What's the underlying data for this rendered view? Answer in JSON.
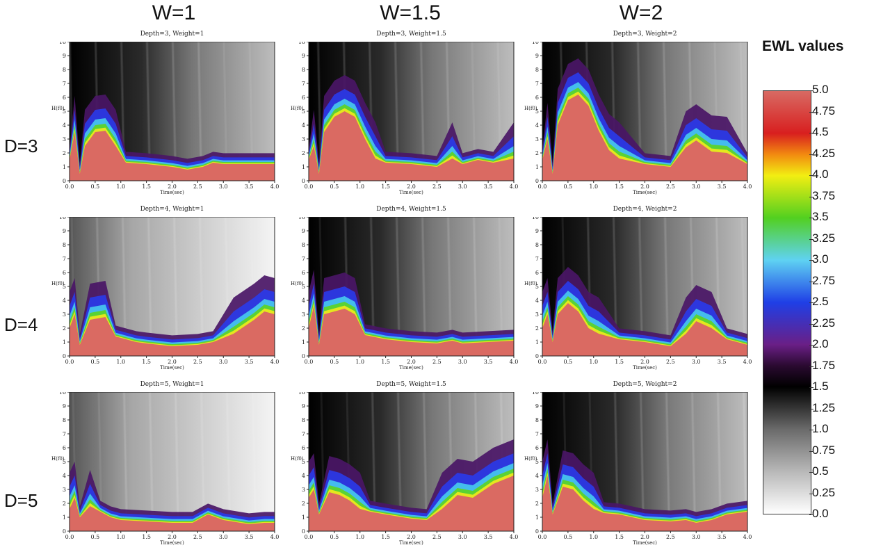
{
  "column_headers": [
    "W=1",
    "W=1.5",
    "W=2"
  ],
  "row_labels": [
    "D=3",
    "D=4",
    "D=5"
  ],
  "colorbar": {
    "title": "EWL values",
    "ticks": [
      "5.0",
      "4.75",
      "4.5",
      "4.25",
      "4.0",
      "3.75",
      "3.5",
      "3.25",
      "3.0",
      "2.75",
      "2.5",
      "2.25",
      "2.0",
      "1.75",
      "1.5",
      "1.25",
      "1.0",
      "0.75",
      "0.5",
      "0.25",
      "0.0"
    ],
    "range": [
      0.0,
      5.0
    ],
    "stops": [
      {
        "v": 0.0,
        "c": "#ffffff"
      },
      {
        "v": 0.5,
        "c": "#b8b8b8"
      },
      {
        "v": 1.0,
        "c": "#6a6a6a"
      },
      {
        "v": 1.5,
        "c": "#000000"
      },
      {
        "v": 1.75,
        "c": "#2a0a30"
      },
      {
        "v": 2.0,
        "c": "#6a1f86"
      },
      {
        "v": 2.5,
        "c": "#1f3fe6"
      },
      {
        "v": 3.0,
        "c": "#5fd2f2"
      },
      {
        "v": 3.5,
        "c": "#52d020"
      },
      {
        "v": 4.0,
        "c": "#f2ee12"
      },
      {
        "v": 4.25,
        "c": "#f28a10"
      },
      {
        "v": 4.5,
        "c": "#d81f1f"
      },
      {
        "v": 5.0,
        "c": "#d86a63"
      }
    ]
  },
  "chart_data": [
    {
      "type": "heatmap",
      "title": "Depth=3, Weight=1",
      "xlabel": "Time(sec)",
      "ylabel": "H(f0)",
      "xlim": [
        0,
        4
      ],
      "ylim": [
        0,
        10
      ],
      "xticks": [
        "0.0",
        "0.5",
        "1.0",
        "1.5",
        "2.0",
        "2.5",
        "3.0",
        "3.5",
        "4.0"
      ],
      "yticks": [
        "0",
        "1",
        "2",
        "3",
        "4",
        "5",
        "6",
        "7",
        "8",
        "9",
        "10"
      ],
      "envelope": {
        "x": [
          0,
          0.1,
          0.2,
          0.3,
          0.5,
          0.7,
          0.9,
          1.1,
          1.5,
          2.0,
          2.3,
          2.6,
          2.8,
          3.0,
          3.5,
          4.0
        ],
        "y": [
          1.5,
          3.5,
          0.5,
          2.5,
          3.5,
          3.6,
          2.5,
          1.3,
          1.2,
          1.0,
          0.8,
          1.0,
          1.3,
          1.2,
          1.2,
          1.2
        ]
      },
      "background": "dark"
    },
    {
      "type": "heatmap",
      "title": "Depth=3, Weight=1.5",
      "xlabel": "Time(sec)",
      "ylabel": "H(f0)",
      "xlim": [
        0,
        4
      ],
      "ylim": [
        0,
        10
      ],
      "xticks": [
        "0.0",
        "0.5",
        "1.0",
        "1.5",
        "2.0",
        "2.5",
        "3.0",
        "3.5",
        "4.0"
      ],
      "yticks": [
        "0",
        "1",
        "2",
        "3",
        "4",
        "5",
        "6",
        "7",
        "8",
        "9",
        "10"
      ],
      "envelope": {
        "x": [
          0,
          0.1,
          0.2,
          0.3,
          0.5,
          0.7,
          0.9,
          1.1,
          1.3,
          1.5,
          2.0,
          2.5,
          2.8,
          3.0,
          3.3,
          3.6,
          4.0
        ],
        "y": [
          1.5,
          2.5,
          0.5,
          3.5,
          4.6,
          5.0,
          4.6,
          3.0,
          1.6,
          1.3,
          1.2,
          1.0,
          1.6,
          1.2,
          1.5,
          1.3,
          1.6
        ]
      },
      "background": "dark"
    },
    {
      "type": "heatmap",
      "title": "Depth=3, Weight=2",
      "xlabel": "Time(sec)",
      "ylabel": "H(f0)",
      "xlim": [
        0,
        4
      ],
      "ylim": [
        0,
        10
      ],
      "xticks": [
        "0.0",
        "0.5",
        "1.0",
        "1.5",
        "2.0",
        "2.5",
        "3.0",
        "3.5",
        "4.0"
      ],
      "yticks": [
        "0",
        "1",
        "2",
        "3",
        "4",
        "5",
        "6",
        "7",
        "8",
        "9",
        "10"
      ],
      "envelope": {
        "x": [
          0,
          0.1,
          0.2,
          0.3,
          0.5,
          0.7,
          0.9,
          1.1,
          1.3,
          1.5,
          2.0,
          2.5,
          2.8,
          3.0,
          3.3,
          3.6,
          4.0
        ],
        "y": [
          1.5,
          3.0,
          0.5,
          4.0,
          5.8,
          6.2,
          5.4,
          3.6,
          2.2,
          1.6,
          1.2,
          1.0,
          2.4,
          2.9,
          2.1,
          2.0,
          1.2
        ]
      },
      "background": "dark"
    },
    {
      "type": "heatmap",
      "title": "Depth=4, Weight=1",
      "xlabel": "Time(sec)",
      "ylabel": "H(f0)",
      "xlim": [
        0,
        4
      ],
      "ylim": [
        0,
        10
      ],
      "xticks": [
        "0.0",
        "0.5",
        "1.0",
        "1.5",
        "2.0",
        "2.5",
        "3.0",
        "3.5",
        "4.0"
      ],
      "yticks": [
        "0",
        "1",
        "2",
        "3",
        "4",
        "5",
        "6",
        "7",
        "8",
        "9",
        "10"
      ],
      "envelope": {
        "x": [
          0,
          0.1,
          0.2,
          0.4,
          0.7,
          0.9,
          1.1,
          1.3,
          1.5,
          2.0,
          2.5,
          2.8,
          3.2,
          3.6,
          3.8,
          4.0
        ],
        "y": [
          2.0,
          3.0,
          0.8,
          2.6,
          2.8,
          1.4,
          1.2,
          1.0,
          0.9,
          0.7,
          0.8,
          1.0,
          1.6,
          2.6,
          3.2,
          3.0
        ]
      },
      "background": "light"
    },
    {
      "type": "heatmap",
      "title": "Depth=4, Weight=1.5",
      "xlabel": "Time(sec)",
      "ylabel": "H(f0)",
      "xlim": [
        0,
        4
      ],
      "ylim": [
        0,
        10
      ],
      "xticks": [
        "0.0",
        "0.5",
        "1.0",
        "1.5",
        "2.0",
        "2.5",
        "3.0",
        "3.5",
        "4.0"
      ],
      "yticks": [
        "0",
        "1",
        "2",
        "3",
        "4",
        "5",
        "6",
        "7",
        "8",
        "9",
        "10"
      ],
      "envelope": {
        "x": [
          0,
          0.1,
          0.2,
          0.3,
          0.5,
          0.7,
          0.9,
          1.1,
          1.5,
          2.0,
          2.5,
          2.8,
          3.0,
          3.5,
          4.0
        ],
        "y": [
          2.0,
          3.6,
          0.8,
          3.0,
          3.2,
          3.4,
          3.0,
          1.5,
          1.2,
          1.0,
          0.9,
          1.1,
          0.9,
          1.0,
          1.1
        ]
      },
      "background": "dark"
    },
    {
      "type": "heatmap",
      "title": "Depth=4, Weight=2",
      "xlabel": "Time(sec)",
      "ylabel": "H(f0)",
      "xlim": [
        0,
        4
      ],
      "ylim": [
        0,
        10
      ],
      "xticks": [
        "0.0",
        "0.5",
        "1.0",
        "1.5",
        "2.0",
        "2.5",
        "3.0",
        "3.5",
        "4.0"
      ],
      "yticks": [
        "0",
        "1",
        "2",
        "3",
        "4",
        "5",
        "6",
        "7",
        "8",
        "9",
        "10"
      ],
      "envelope": {
        "x": [
          0,
          0.1,
          0.2,
          0.3,
          0.5,
          0.7,
          0.9,
          1.1,
          1.5,
          2.0,
          2.5,
          2.8,
          3.0,
          3.3,
          3.6,
          4.0
        ],
        "y": [
          2.0,
          3.0,
          1.0,
          3.0,
          3.8,
          3.2,
          2.0,
          1.6,
          1.2,
          1.0,
          0.7,
          1.6,
          2.5,
          2.0,
          1.2,
          0.8
        ]
      },
      "background": "dark"
    },
    {
      "type": "heatmap",
      "title": "Depth=5, Weight=1",
      "xlabel": "Time(sec)",
      "ylabel": "H(f0)",
      "xlim": [
        0,
        4
      ],
      "ylim": [
        0,
        10
      ],
      "xticks": [
        "0.0",
        "0.5",
        "1.0",
        "1.5",
        "2.0",
        "2.5",
        "3.0",
        "3.5",
        "4.0"
      ],
      "yticks": [
        "0",
        "1",
        "2",
        "3",
        "4",
        "5",
        "6",
        "7",
        "8",
        "9",
        "10"
      ],
      "envelope": {
        "x": [
          0,
          0.1,
          0.2,
          0.4,
          0.6,
          0.8,
          1.0,
          1.5,
          2.0,
          2.4,
          2.7,
          3.0,
          3.5,
          3.8,
          4.0
        ],
        "y": [
          1.6,
          2.4,
          1.0,
          1.8,
          1.4,
          1.0,
          0.8,
          0.7,
          0.6,
          0.6,
          1.2,
          0.8,
          0.5,
          0.6,
          0.6
        ]
      },
      "background": "light"
    },
    {
      "type": "heatmap",
      "title": "Depth=5, Weight=1.5",
      "xlabel": "Time(sec)",
      "ylabel": "H(f0)",
      "xlim": [
        0,
        4
      ],
      "ylim": [
        0,
        10
      ],
      "xticks": [
        "0.0",
        "0.5",
        "1.0",
        "1.5",
        "2.0",
        "2.5",
        "3.0",
        "3.5",
        "4.0"
      ],
      "yticks": [
        "0",
        "1",
        "2",
        "3",
        "4",
        "5",
        "6",
        "7",
        "8",
        "9",
        "10"
      ],
      "envelope": {
        "x": [
          0,
          0.1,
          0.2,
          0.4,
          0.6,
          0.8,
          1.0,
          1.2,
          1.5,
          2.0,
          2.3,
          2.6,
          2.9,
          3.2,
          3.6,
          4.0
        ],
        "y": [
          2.4,
          3.0,
          1.2,
          2.8,
          2.6,
          2.2,
          1.6,
          1.4,
          1.2,
          0.9,
          0.8,
          1.6,
          2.6,
          2.4,
          3.4,
          4.0
        ]
      },
      "background": "dark"
    },
    {
      "type": "heatmap",
      "title": "Depth=5, Weight=2",
      "xlabel": "Time(sec)",
      "ylabel": "H(f0)",
      "xlim": [
        0,
        4
      ],
      "ylim": [
        0,
        10
      ],
      "xticks": [
        "0.0",
        "0.5",
        "1.0",
        "1.5",
        "2.0",
        "2.5",
        "3.0",
        "3.5",
        "4.0"
      ],
      "yticks": [
        "0",
        "1",
        "2",
        "3",
        "4",
        "5",
        "6",
        "7",
        "8",
        "9",
        "10"
      ],
      "envelope": {
        "x": [
          0,
          0.1,
          0.2,
          0.4,
          0.6,
          0.8,
          1.0,
          1.2,
          1.5,
          2.0,
          2.5,
          2.8,
          3.0,
          3.3,
          3.6,
          4.0
        ],
        "y": [
          2.4,
          4.0,
          1.2,
          3.2,
          3.0,
          2.2,
          1.6,
          1.3,
          1.2,
          0.8,
          0.7,
          0.8,
          0.6,
          0.8,
          1.2,
          1.4
        ]
      },
      "background": "dark"
    }
  ]
}
